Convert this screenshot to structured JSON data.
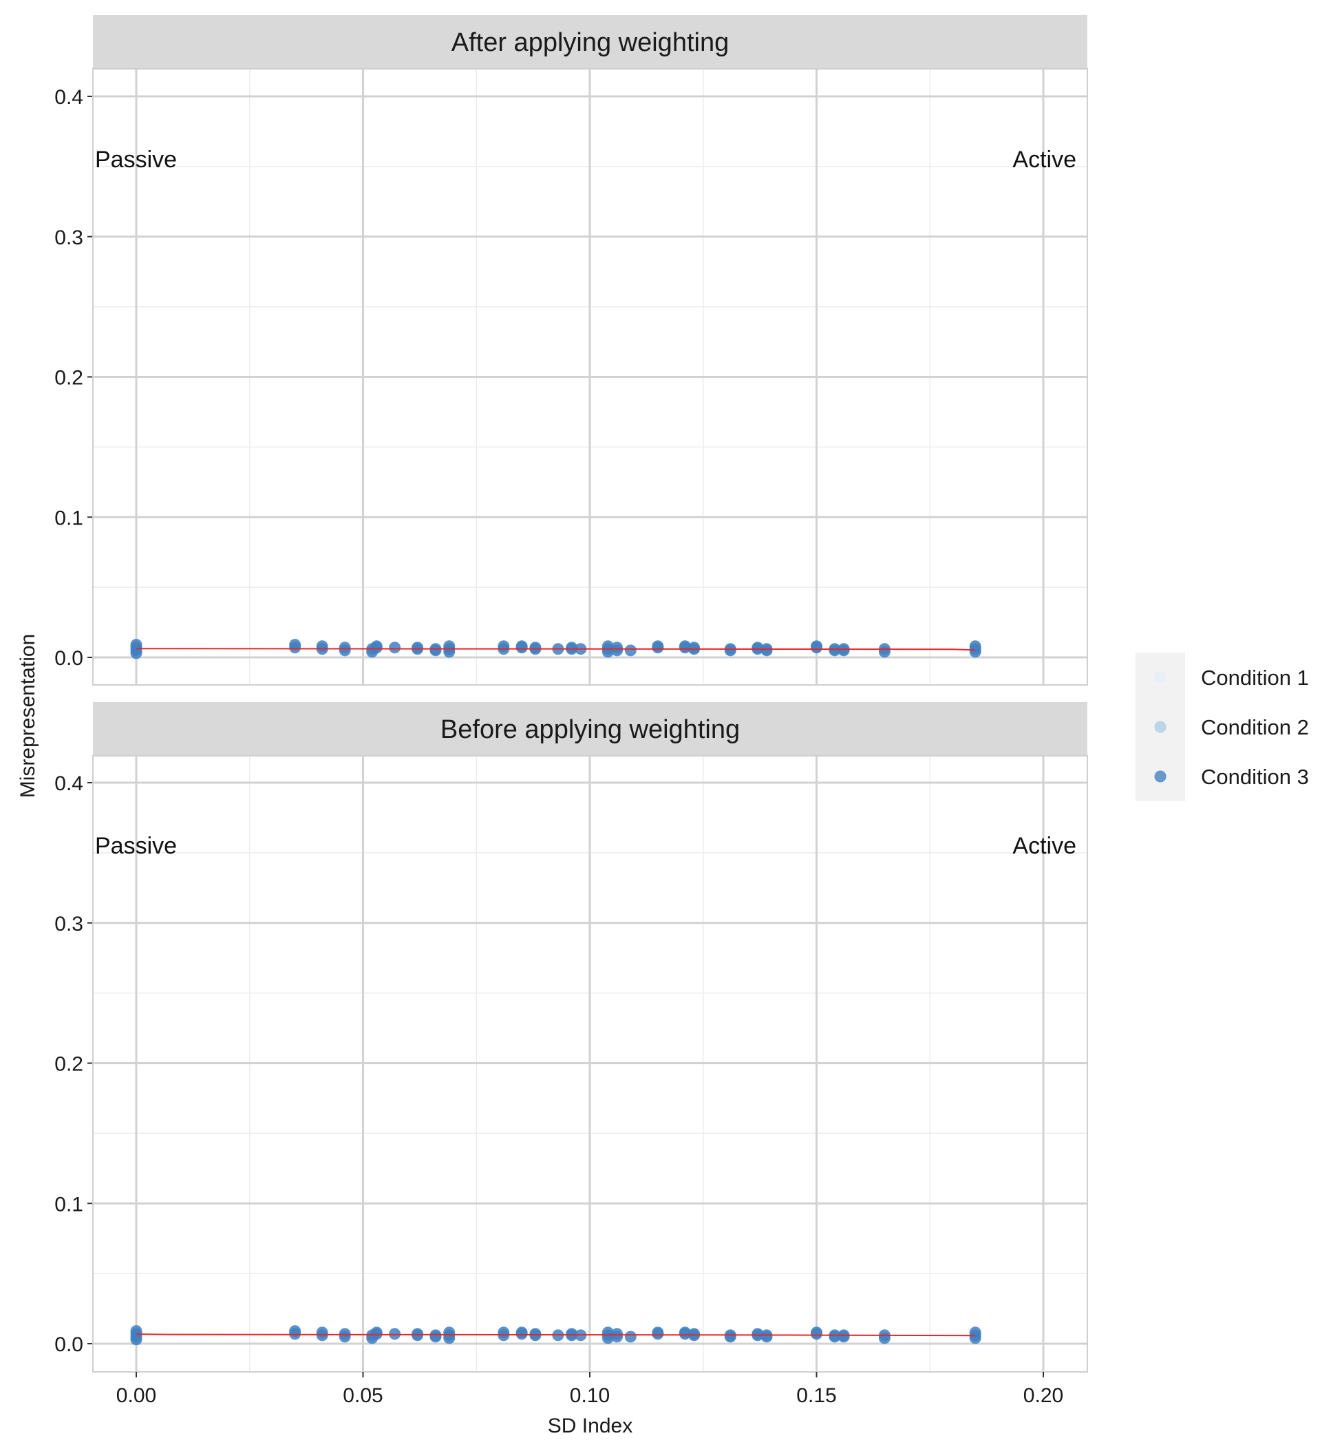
{
  "chart_data": {
    "type": "scatter",
    "facets": [
      {
        "strip_label": "After applying weighting",
        "annotations": {
          "left": "Passive",
          "right": "Active"
        },
        "trend_line": [
          [
            0.0,
            0.0063
          ],
          [
            0.18,
            0.0058
          ],
          [
            0.185,
            0.0052
          ]
        ]
      },
      {
        "strip_label": "Before applying weighting",
        "annotations": {
          "left": "Passive",
          "right": "Active"
        },
        "trend_line": [
          [
            0.0,
            0.0068
          ],
          [
            0.007,
            0.0066
          ],
          [
            0.12,
            0.0063
          ],
          [
            0.185,
            0.0058
          ]
        ]
      }
    ],
    "xlabel": "SD Index",
    "ylabel": "Misrepresentation",
    "x_ticks": [
      "0.00",
      "0.05",
      "0.10",
      "0.15",
      "0.20"
    ],
    "y_ticks": [
      "0.0",
      "0.1",
      "0.2",
      "0.3",
      "0.4"
    ],
    "xlim": [
      -0.01,
      0.21
    ],
    "ylim": [
      -0.02,
      0.42
    ],
    "x_tick_values": [
      0.0,
      0.05,
      0.1,
      0.15,
      0.2
    ],
    "y_tick_values": [
      0.0,
      0.1,
      0.2,
      0.3,
      0.4
    ],
    "grid": true,
    "legend": {
      "position": "right",
      "entries": [
        {
          "label": "Condition 1",
          "color": "#e6eef8"
        },
        {
          "label": "Condition 2",
          "color": "#b4d3e6"
        },
        {
          "label": "Condition 3",
          "color": "#5b8fc7"
        }
      ]
    },
    "point_color": "#3f7fc1",
    "line_color": "#e8262a",
    "points_x": [
      0.0,
      0.035,
      0.041,
      0.046,
      0.052,
      0.053,
      0.057,
      0.062,
      0.066,
      0.069,
      0.081,
      0.085,
      0.088,
      0.093,
      0.096,
      0.098,
      0.104,
      0.106,
      0.109,
      0.115,
      0.121,
      0.123,
      0.131,
      0.137,
      0.139,
      0.15,
      0.154,
      0.156,
      0.165,
      0.185
    ],
    "points_y": [
      [
        0.003,
        0.005,
        0.007,
        0.009
      ],
      [
        0.007,
        0.009
      ],
      [
        0.006,
        0.008
      ],
      [
        0.005,
        0.007
      ],
      [
        0.004,
        0.006
      ],
      [
        0.007,
        0.008
      ],
      [
        0.007
      ],
      [
        0.006,
        0.007
      ],
      [
        0.005,
        0.006
      ],
      [
        0.004,
        0.006,
        0.008
      ],
      [
        0.006,
        0.008
      ],
      [
        0.007,
        0.008
      ],
      [
        0.006,
        0.007
      ],
      [
        0.006
      ],
      [
        0.006,
        0.007
      ],
      [
        0.006
      ],
      [
        0.004,
        0.006,
        0.008
      ],
      [
        0.005,
        0.007
      ],
      [
        0.005
      ],
      [
        0.007,
        0.008
      ],
      [
        0.007,
        0.008
      ],
      [
        0.006,
        0.007
      ],
      [
        0.005,
        0.006
      ],
      [
        0.006,
        0.007
      ],
      [
        0.005,
        0.006
      ],
      [
        0.007,
        0.008
      ],
      [
        0.005,
        0.006
      ],
      [
        0.005,
        0.006
      ],
      [
        0.004,
        0.006
      ],
      [
        0.004,
        0.006,
        0.008
      ]
    ]
  }
}
